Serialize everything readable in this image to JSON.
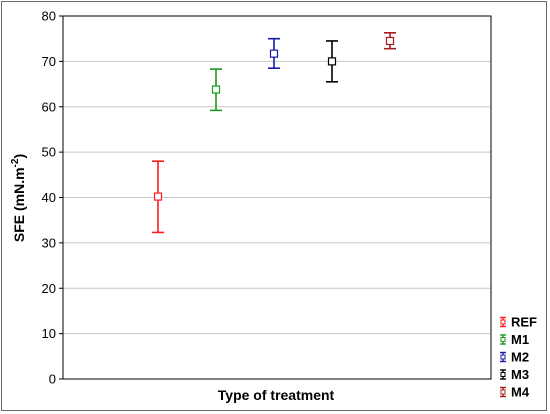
{
  "chart_data": {
    "type": "errorbar",
    "xlabel": "Type of treatment",
    "ylabel": "SFE (mN.m",
    "ylabel_superscript": "-2",
    "ylabel_suffix": ")",
    "ylim": [
      0,
      80
    ],
    "yticks": [
      "0",
      "10",
      "20",
      "30",
      "40",
      "50",
      "60",
      "70",
      "80"
    ],
    "grid": "horizontal",
    "legend_position": "bottom-right",
    "series": [
      {
        "name": "REF",
        "mean": 40.2,
        "low": 32.3,
        "high": 48.0,
        "color": "#ff1a1a"
      },
      {
        "name": "M1",
        "mean": 63.8,
        "low": 59.2,
        "high": 68.3,
        "color": "#1a9a1a"
      },
      {
        "name": "M2",
        "mean": 71.7,
        "low": 68.5,
        "high": 75.0,
        "color": "#1a1aa8"
      },
      {
        "name": "M3",
        "mean": 70.0,
        "low": 65.5,
        "high": 74.5,
        "color": "#000000"
      },
      {
        "name": "M4",
        "mean": 74.5,
        "low": 72.8,
        "high": 76.3,
        "color": "#a81a1a"
      }
    ]
  }
}
